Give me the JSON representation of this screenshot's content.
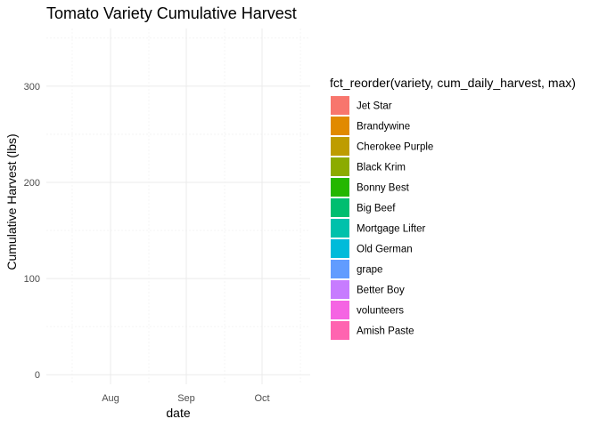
{
  "chart_data": {
    "type": "area",
    "title": "Tomato Variety Cumulative Harvest",
    "xlabel": "date",
    "ylabel": "Cumulative Harvest (lbs)",
    "x_ticks": [
      "Aug",
      "Sep",
      "Oct"
    ],
    "y_ticks": [
      0,
      100,
      200,
      300
    ],
    "ylim": [
      -10,
      360
    ],
    "legend_title": "fct_reorder(variety, cum_daily_harvest, max)",
    "legend_position": "right",
    "grid": true,
    "series": [
      {
        "name": "Jet Star",
        "color": "#F8766D",
        "values": []
      },
      {
        "name": "Brandywine",
        "color": "#E18A00",
        "values": []
      },
      {
        "name": "Cherokee Purple",
        "color": "#BE9C00",
        "values": []
      },
      {
        "name": "Black Krim",
        "color": "#8CAB00",
        "values": []
      },
      {
        "name": "Bonny Best",
        "color": "#24B700",
        "values": []
      },
      {
        "name": "Big Beef",
        "color": "#00BE70",
        "values": []
      },
      {
        "name": "Mortgage Lifter",
        "color": "#00C1AB",
        "values": []
      },
      {
        "name": "Old German",
        "color": "#00BBDA",
        "values": []
      },
      {
        "name": "grape",
        "color": "#619CFF",
        "values": []
      },
      {
        "name": "Better Boy",
        "color": "#C77CFF",
        "values": []
      },
      {
        "name": "volunteers",
        "color": "#F564E3",
        "values": []
      },
      {
        "name": "Amish Paste",
        "color": "#FF64B0",
        "values": []
      }
    ]
  }
}
